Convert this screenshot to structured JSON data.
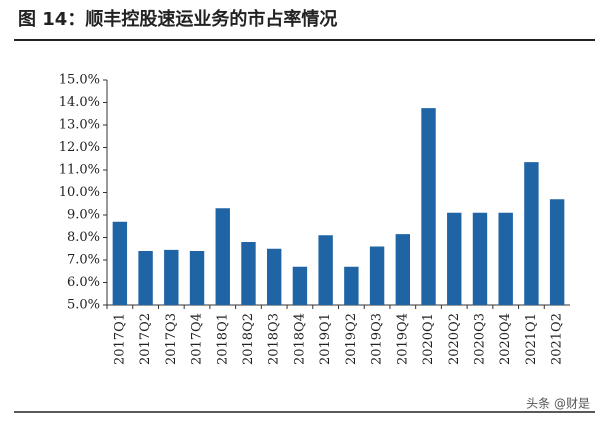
{
  "chart_data": {
    "type": "bar",
    "title": "图 14：顺丰控股速运业务的市占率情况",
    "categories": [
      "2017Q1",
      "2017Q2",
      "2017Q3",
      "2017Q4",
      "2018Q1",
      "2018Q2",
      "2018Q3",
      "2018Q4",
      "2019Q1",
      "2019Q2",
      "2019Q3",
      "2019Q4",
      "2020Q1",
      "2020Q2",
      "2020Q3",
      "2020Q4",
      "2021Q1",
      "2021Q2"
    ],
    "values": [
      8.7,
      7.4,
      7.45,
      7.4,
      9.3,
      7.8,
      7.5,
      6.7,
      8.1,
      6.7,
      7.6,
      8.15,
      13.75,
      9.1,
      9.1,
      9.1,
      11.35,
      9.7
    ],
    "color": "#1f65a6",
    "ylim": [
      5,
      15
    ],
    "yticks": [
      {
        "value": 5,
        "label": "5.0%"
      },
      {
        "value": 6,
        "label": "6.0%"
      },
      {
        "value": 7,
        "label": "7.0%"
      },
      {
        "value": 8,
        "label": "8.0%"
      },
      {
        "value": 9,
        "label": "9.0%"
      },
      {
        "value": 10,
        "label": "10.0%"
      },
      {
        "value": 11,
        "label": "11.0%"
      },
      {
        "value": 12,
        "label": "12.0%"
      },
      {
        "value": 13,
        "label": "13.0%"
      },
      {
        "value": 14,
        "label": "14.0%"
      },
      {
        "value": 15,
        "label": "15.0%"
      }
    ],
    "grid": false,
    "watermark": "头条 @财是"
  }
}
